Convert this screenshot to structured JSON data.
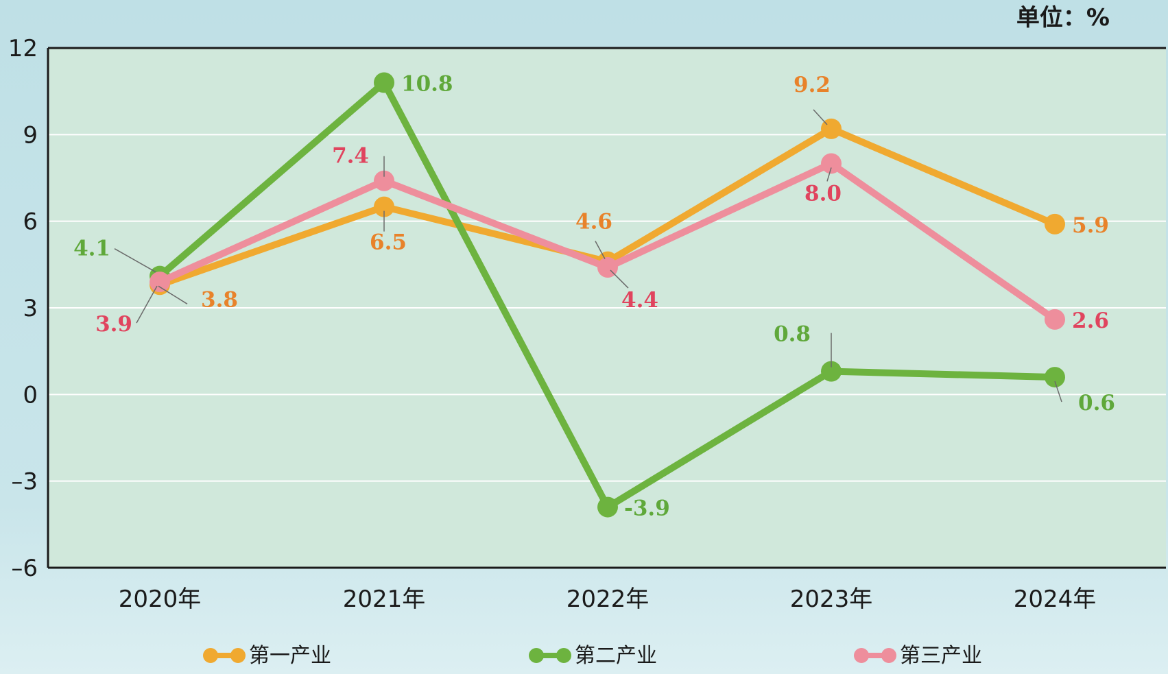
{
  "colors": {
    "background": "#bfe0e6",
    "plot_background": "#d0e8db",
    "grid": "#ffffff",
    "axis": "#1a1a1a",
    "leader": "#6a6a6a"
  },
  "chart_data": {
    "type": "line",
    "unit_label": "单位：%",
    "categories": [
      "2020年",
      "2021年",
      "2022年",
      "2023年",
      "2024年"
    ],
    "ylim": [
      -6,
      12
    ],
    "yticks": [
      12,
      9,
      6,
      3,
      0,
      -3,
      -6
    ],
    "ytick_labels": [
      "12",
      "9",
      "6",
      "3",
      "0",
      "–3",
      "–6"
    ],
    "grid": true,
    "legend_position": "bottom",
    "series": [
      {
        "name": "第一产业",
        "color": "#f0a930",
        "label_color": "#e8822a",
        "values": [
          3.8,
          6.5,
          4.6,
          9.2,
          5.9
        ],
        "labels": [
          "3.8",
          "6.5",
          "4.6",
          "9.2",
          "5.9"
        ]
      },
      {
        "name": "第二产业",
        "color": "#6db33f",
        "label_color": "#5fa83a",
        "values": [
          4.1,
          10.8,
          -3.9,
          0.8,
          0.6
        ],
        "labels": [
          "4.1",
          "10.8",
          "-3.9",
          "0.8",
          "0.6"
        ]
      },
      {
        "name": "第三产业",
        "color": "#ee8e9c",
        "label_color": "#e0445e",
        "values": [
          3.9,
          7.4,
          4.4,
          8.0,
          2.6
        ],
        "labels": [
          "3.9",
          "7.4",
          "4.4",
          "8.0",
          "2.6"
        ]
      }
    ]
  }
}
